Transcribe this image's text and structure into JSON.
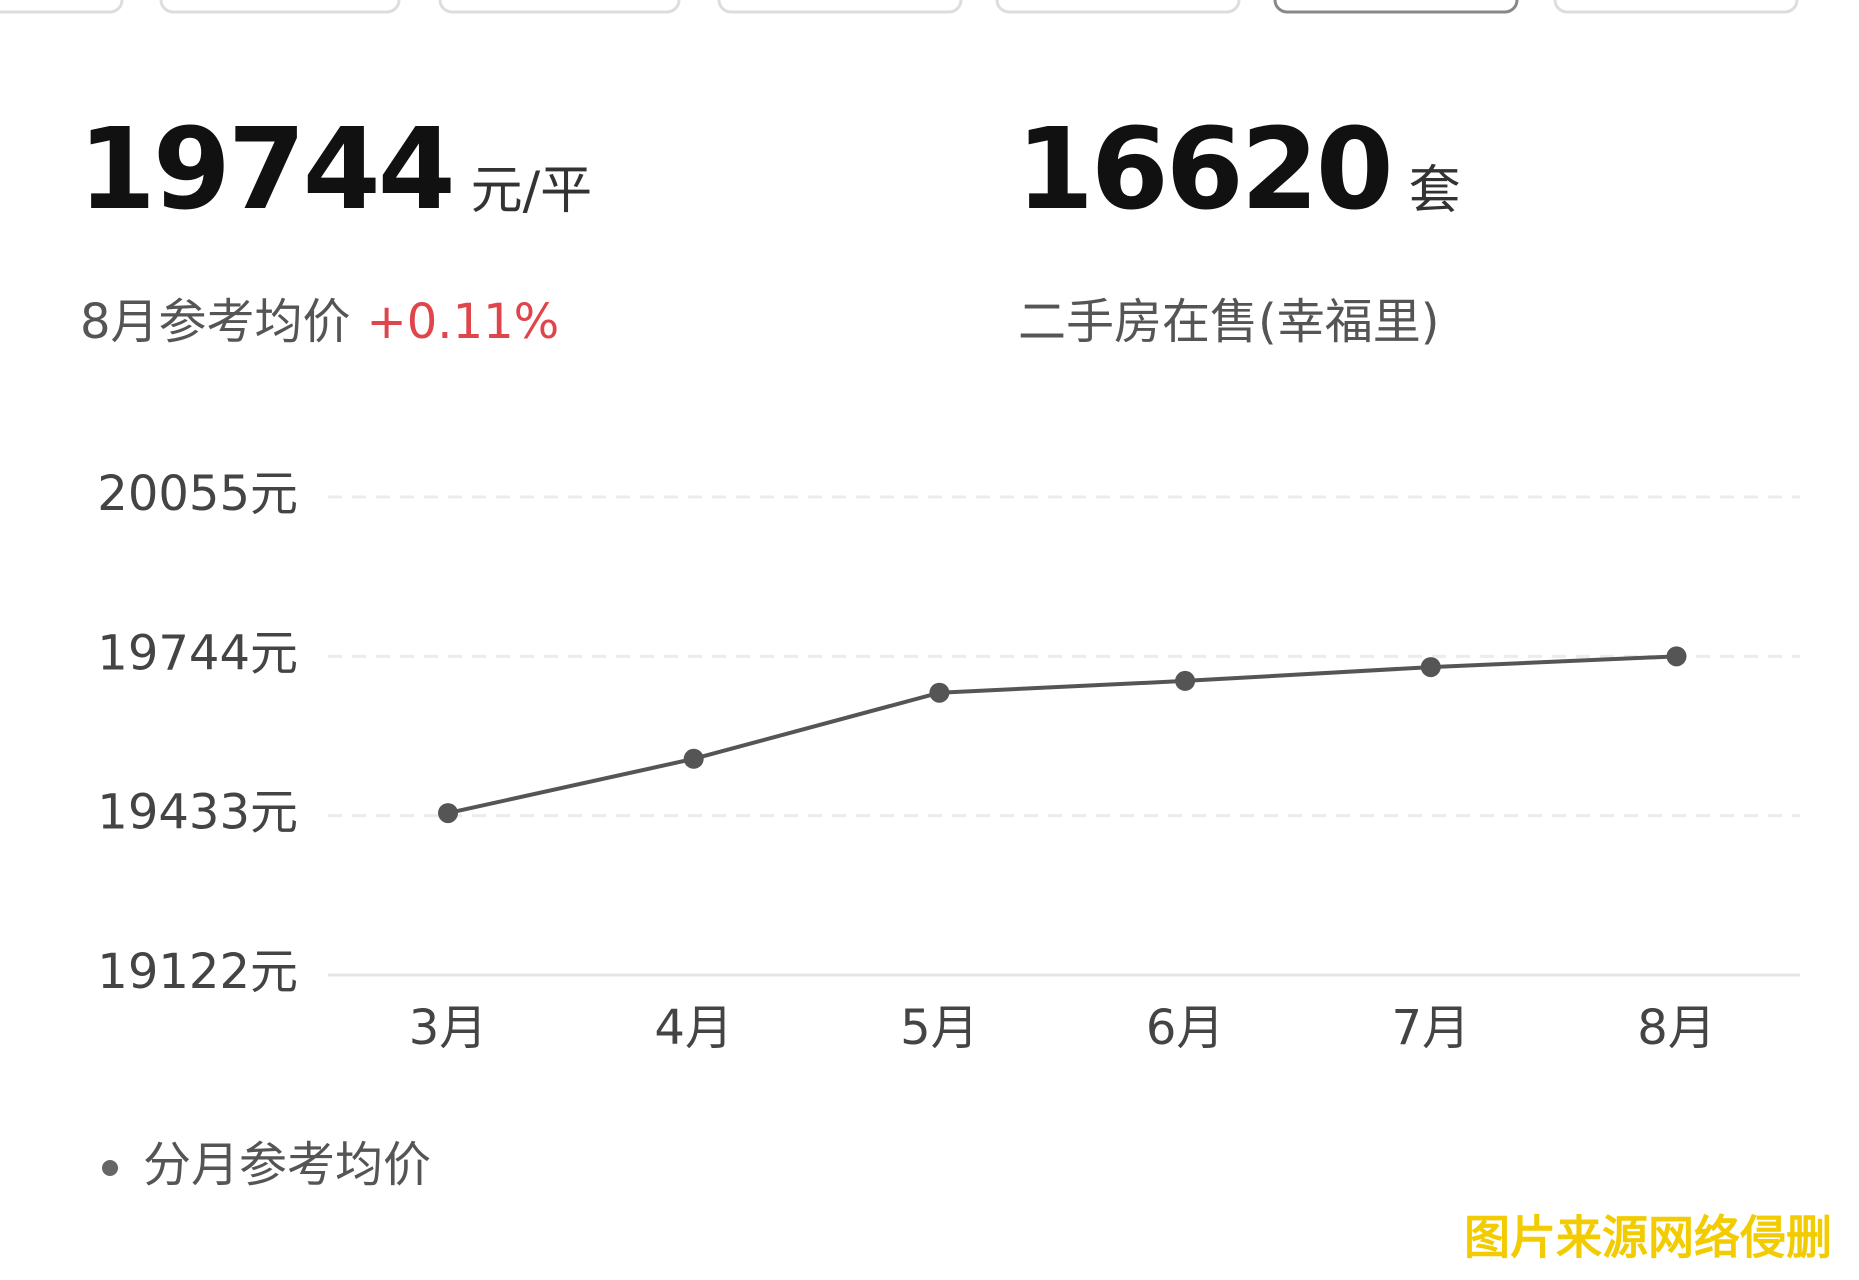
{
  "header": {
    "price": "19744",
    "price_unit": "元/平",
    "price_caption": "8月参考均价",
    "price_change": "+0.11%",
    "listings": "16620",
    "listings_unit": "套",
    "listings_caption": "二手房在售(幸福里)"
  },
  "chart_data": {
    "type": "line",
    "categories": [
      "3月",
      "4月",
      "5月",
      "6月",
      "7月",
      "8月"
    ],
    "series": [
      {
        "name": "分月参考均价",
        "color": "#555555",
        "values": [
          19438,
          19544,
          19673,
          19696,
          19723,
          19744
        ]
      }
    ],
    "ylim": [
      19122,
      20055
    ],
    "yticks": [
      {
        "value": 19122,
        "label": "19122元"
      },
      {
        "value": 19433,
        "label": "19433元"
      },
      {
        "value": 19744,
        "label": "19744元"
      },
      {
        "value": 20055,
        "label": "20055元"
      }
    ],
    "grid": true
  },
  "watermark": "图片来源网络侵删"
}
